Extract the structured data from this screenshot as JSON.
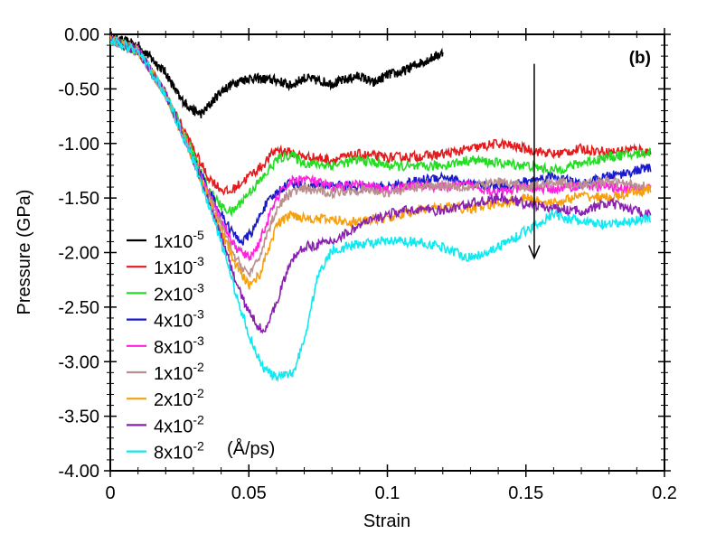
{
  "chart_data": {
    "type": "line",
    "title": "",
    "panel_label": "(b)",
    "xlabel": "Strain",
    "ylabel": "Pressure (GPa)",
    "xlim": [
      0,
      0.2
    ],
    "ylim": [
      -4.0,
      0.0
    ],
    "x_ticks": [
      "0",
      "0.05",
      "0.1",
      "0.15",
      "0.2"
    ],
    "y_ticks": [
      "0.00",
      "-0.50",
      "-1.00",
      "-1.50",
      "-2.00",
      "-2.50",
      "-3.00",
      "-3.50",
      "-4.00"
    ],
    "legend_unit": "(Å/ps)",
    "legend_position": "lower-left",
    "annotation": "downward arrow near strain 0.153 indicating increasing strain rate",
    "arrow": {
      "x": 0.153,
      "y_start": -0.27,
      "y_end": -2.05
    },
    "series": [
      {
        "name": "1x10^-5",
        "mantissa": "1x10",
        "exponent": "-5",
        "color": "#000000",
        "x_end": 0.12,
        "points": [
          [
            0,
            -0.03
          ],
          [
            0.01,
            -0.1
          ],
          [
            0.02,
            -0.35
          ],
          [
            0.025,
            -0.58
          ],
          [
            0.03,
            -0.7
          ],
          [
            0.033,
            -0.73
          ],
          [
            0.04,
            -0.52
          ],
          [
            0.045,
            -0.44
          ],
          [
            0.05,
            -0.4
          ],
          [
            0.06,
            -0.42
          ],
          [
            0.065,
            -0.47
          ],
          [
            0.07,
            -0.4
          ],
          [
            0.08,
            -0.45
          ],
          [
            0.09,
            -0.38
          ],
          [
            0.095,
            -0.45
          ],
          [
            0.1,
            -0.37
          ],
          [
            0.105,
            -0.35
          ],
          [
            0.11,
            -0.28
          ],
          [
            0.115,
            -0.23
          ],
          [
            0.12,
            -0.17
          ]
        ]
      },
      {
        "name": "1x10^-3",
        "mantissa": "1x10",
        "exponent": "-3",
        "color": "#e41a1c",
        "x_end": 0.195,
        "points": [
          [
            0,
            -0.05
          ],
          [
            0.01,
            -0.15
          ],
          [
            0.02,
            -0.55
          ],
          [
            0.03,
            -1.05
          ],
          [
            0.035,
            -1.3
          ],
          [
            0.04,
            -1.42
          ],
          [
            0.043,
            -1.45
          ],
          [
            0.05,
            -1.3
          ],
          [
            0.055,
            -1.2
          ],
          [
            0.06,
            -1.05
          ],
          [
            0.07,
            -1.12
          ],
          [
            0.08,
            -1.15
          ],
          [
            0.09,
            -1.1
          ],
          [
            0.1,
            -1.13
          ],
          [
            0.11,
            -1.12
          ],
          [
            0.12,
            -1.1
          ],
          [
            0.13,
            -1.05
          ],
          [
            0.14,
            -1.0
          ],
          [
            0.15,
            -1.05
          ],
          [
            0.16,
            -1.1
          ],
          [
            0.17,
            -1.05
          ],
          [
            0.18,
            -1.08
          ],
          [
            0.19,
            -1.05
          ],
          [
            0.195,
            -1.08
          ]
        ]
      },
      {
        "name": "2x10^-3",
        "mantissa": "2x10",
        "exponent": "-3",
        "color": "#22dd22",
        "x_end": 0.195,
        "points": [
          [
            0,
            -0.05
          ],
          [
            0.01,
            -0.15
          ],
          [
            0.02,
            -0.55
          ],
          [
            0.03,
            -1.1
          ],
          [
            0.035,
            -1.4
          ],
          [
            0.04,
            -1.58
          ],
          [
            0.044,
            -1.63
          ],
          [
            0.05,
            -1.45
          ],
          [
            0.055,
            -1.32
          ],
          [
            0.06,
            -1.15
          ],
          [
            0.065,
            -1.1
          ],
          [
            0.07,
            -1.18
          ],
          [
            0.08,
            -1.2
          ],
          [
            0.09,
            -1.15
          ],
          [
            0.1,
            -1.2
          ],
          [
            0.11,
            -1.22
          ],
          [
            0.12,
            -1.2
          ],
          [
            0.13,
            -1.15
          ],
          [
            0.14,
            -1.18
          ],
          [
            0.15,
            -1.2
          ],
          [
            0.16,
            -1.25
          ],
          [
            0.17,
            -1.18
          ],
          [
            0.18,
            -1.12
          ],
          [
            0.19,
            -1.1
          ],
          [
            0.195,
            -1.08
          ]
        ]
      },
      {
        "name": "4x10^-3",
        "mantissa": "4x10",
        "exponent": "-3",
        "color": "#1a1acc",
        "x_end": 0.195,
        "points": [
          [
            0,
            -0.05
          ],
          [
            0.01,
            -0.15
          ],
          [
            0.02,
            -0.55
          ],
          [
            0.03,
            -1.15
          ],
          [
            0.04,
            -1.65
          ],
          [
            0.045,
            -1.85
          ],
          [
            0.048,
            -1.9
          ],
          [
            0.052,
            -1.78
          ],
          [
            0.055,
            -1.6
          ],
          [
            0.06,
            -1.45
          ],
          [
            0.065,
            -1.35
          ],
          [
            0.07,
            -1.4
          ],
          [
            0.08,
            -1.38
          ],
          [
            0.09,
            -1.4
          ],
          [
            0.1,
            -1.4
          ],
          [
            0.11,
            -1.35
          ],
          [
            0.12,
            -1.3
          ],
          [
            0.13,
            -1.38
          ],
          [
            0.14,
            -1.4
          ],
          [
            0.15,
            -1.35
          ],
          [
            0.16,
            -1.3
          ],
          [
            0.17,
            -1.38
          ],
          [
            0.18,
            -1.3
          ],
          [
            0.19,
            -1.25
          ],
          [
            0.195,
            -1.22
          ]
        ]
      },
      {
        "name": "8x10^-3",
        "mantissa": "8x10",
        "exponent": "-3",
        "color": "#ff22dd",
        "x_end": 0.195,
        "points": [
          [
            0,
            -0.05
          ],
          [
            0.01,
            -0.15
          ],
          [
            0.02,
            -0.55
          ],
          [
            0.03,
            -1.15
          ],
          [
            0.04,
            -1.7
          ],
          [
            0.045,
            -1.95
          ],
          [
            0.05,
            -2.05
          ],
          [
            0.053,
            -1.95
          ],
          [
            0.057,
            -1.7
          ],
          [
            0.06,
            -1.5
          ],
          [
            0.065,
            -1.35
          ],
          [
            0.07,
            -1.32
          ],
          [
            0.08,
            -1.4
          ],
          [
            0.09,
            -1.38
          ],
          [
            0.1,
            -1.42
          ],
          [
            0.11,
            -1.38
          ],
          [
            0.12,
            -1.4
          ],
          [
            0.13,
            -1.38
          ],
          [
            0.14,
            -1.45
          ],
          [
            0.15,
            -1.4
          ],
          [
            0.16,
            -1.42
          ],
          [
            0.17,
            -1.38
          ],
          [
            0.18,
            -1.4
          ],
          [
            0.19,
            -1.42
          ],
          [
            0.195,
            -1.4
          ]
        ]
      },
      {
        "name": "1x10^-2",
        "mantissa": "1x10",
        "exponent": "-2",
        "color": "#bc8f8f",
        "x_end": 0.195,
        "points": [
          [
            0,
            -0.05
          ],
          [
            0.01,
            -0.15
          ],
          [
            0.02,
            -0.55
          ],
          [
            0.03,
            -1.15
          ],
          [
            0.04,
            -1.75
          ],
          [
            0.045,
            -2.05
          ],
          [
            0.05,
            -2.2
          ],
          [
            0.053,
            -2.1
          ],
          [
            0.057,
            -1.8
          ],
          [
            0.06,
            -1.6
          ],
          [
            0.065,
            -1.45
          ],
          [
            0.07,
            -1.42
          ],
          [
            0.08,
            -1.45
          ],
          [
            0.09,
            -1.42
          ],
          [
            0.1,
            -1.45
          ],
          [
            0.11,
            -1.4
          ],
          [
            0.12,
            -1.38
          ],
          [
            0.13,
            -1.4
          ],
          [
            0.14,
            -1.35
          ],
          [
            0.15,
            -1.4
          ],
          [
            0.16,
            -1.35
          ],
          [
            0.17,
            -1.38
          ],
          [
            0.18,
            -1.35
          ],
          [
            0.19,
            -1.38
          ],
          [
            0.195,
            -1.4
          ]
        ]
      },
      {
        "name": "2x10^-2",
        "mantissa": "2x10",
        "exponent": "-2",
        "color": "#f5a010",
        "x_end": 0.195,
        "points": [
          [
            0,
            -0.05
          ],
          [
            0.01,
            -0.15
          ],
          [
            0.02,
            -0.55
          ],
          [
            0.03,
            -1.15
          ],
          [
            0.04,
            -1.8
          ],
          [
            0.045,
            -2.1
          ],
          [
            0.05,
            -2.3
          ],
          [
            0.054,
            -2.2
          ],
          [
            0.058,
            -1.9
          ],
          [
            0.06,
            -1.75
          ],
          [
            0.065,
            -1.65
          ],
          [
            0.07,
            -1.68
          ],
          [
            0.08,
            -1.7
          ],
          [
            0.09,
            -1.72
          ],
          [
            0.1,
            -1.68
          ],
          [
            0.11,
            -1.62
          ],
          [
            0.12,
            -1.58
          ],
          [
            0.13,
            -1.6
          ],
          [
            0.14,
            -1.55
          ],
          [
            0.15,
            -1.5
          ],
          [
            0.16,
            -1.55
          ],
          [
            0.17,
            -1.48
          ],
          [
            0.18,
            -1.5
          ],
          [
            0.19,
            -1.45
          ],
          [
            0.195,
            -1.42
          ]
        ]
      },
      {
        "name": "4x10^-2",
        "mantissa": "4x10",
        "exponent": "-2",
        "color": "#8a20b0",
        "x_end": 0.195,
        "points": [
          [
            0,
            -0.05
          ],
          [
            0.01,
            -0.15
          ],
          [
            0.02,
            -0.55
          ],
          [
            0.03,
            -1.15
          ],
          [
            0.04,
            -1.85
          ],
          [
            0.045,
            -2.25
          ],
          [
            0.05,
            -2.55
          ],
          [
            0.055,
            -2.72
          ],
          [
            0.058,
            -2.6
          ],
          [
            0.062,
            -2.3
          ],
          [
            0.066,
            -2.05
          ],
          [
            0.07,
            -1.95
          ],
          [
            0.08,
            -1.9
          ],
          [
            0.09,
            -1.75
          ],
          [
            0.1,
            -1.65
          ],
          [
            0.11,
            -1.6
          ],
          [
            0.12,
            -1.62
          ],
          [
            0.13,
            -1.55
          ],
          [
            0.14,
            -1.5
          ],
          [
            0.15,
            -1.55
          ],
          [
            0.16,
            -1.6
          ],
          [
            0.17,
            -1.62
          ],
          [
            0.18,
            -1.55
          ],
          [
            0.19,
            -1.62
          ],
          [
            0.195,
            -1.65
          ]
        ]
      },
      {
        "name": "8x10^-2",
        "mantissa": "8x10",
        "exponent": "-2",
        "color": "#11e8f0",
        "x_end": 0.195,
        "points": [
          [
            0,
            -0.05
          ],
          [
            0.01,
            -0.15
          ],
          [
            0.02,
            -0.55
          ],
          [
            0.03,
            -1.15
          ],
          [
            0.04,
            -1.9
          ],
          [
            0.045,
            -2.35
          ],
          [
            0.05,
            -2.75
          ],
          [
            0.055,
            -3.05
          ],
          [
            0.06,
            -3.15
          ],
          [
            0.066,
            -3.1
          ],
          [
            0.07,
            -2.8
          ],
          [
            0.075,
            -2.2
          ],
          [
            0.08,
            -1.98
          ],
          [
            0.09,
            -1.92
          ],
          [
            0.1,
            -1.9
          ],
          [
            0.11,
            -1.9
          ],
          [
            0.12,
            -1.95
          ],
          [
            0.13,
            -2.05
          ],
          [
            0.14,
            -1.95
          ],
          [
            0.15,
            -1.8
          ],
          [
            0.16,
            -1.65
          ],
          [
            0.17,
            -1.72
          ],
          [
            0.18,
            -1.75
          ],
          [
            0.19,
            -1.7
          ],
          [
            0.195,
            -1.68
          ]
        ]
      }
    ]
  }
}
